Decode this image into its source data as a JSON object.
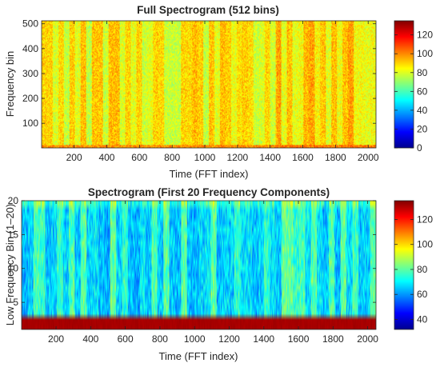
{
  "chart_data": [
    {
      "type": "heatmap",
      "title": "Full Spectrogram (512 bins)",
      "xlabel": "Time (FFT index)",
      "ylabel": "Frequency bin",
      "xlim": [
        1,
        2048
      ],
      "ylim": [
        1,
        512
      ],
      "xticks": [
        "200",
        "400",
        "600",
        "800",
        "1000",
        "1200",
        "1400",
        "1600",
        "1800",
        "2000"
      ],
      "yticks": [
        "500",
        "400",
        "300",
        "200",
        "100"
      ],
      "colormap": "jet",
      "clim": [
        0,
        135
      ],
      "colorbar_ticks": [
        "120",
        "100",
        "80",
        "60",
        "40",
        "20",
        "0"
      ],
      "typical_level": 85,
      "colorbar_position": "right"
    },
    {
      "type": "heatmap",
      "title": "Spectrogram (First 20 Frequency Components)",
      "xlabel": "Time (FFT index)",
      "ylabel": "Low Frequency Bin (1–20)",
      "xlim": [
        1,
        2048
      ],
      "ylim": [
        1,
        20
      ],
      "xticks": [
        "200",
        "400",
        "600",
        "800",
        "1000",
        "1200",
        "1400",
        "1600",
        "1800",
        "2000"
      ],
      "yticks": [
        "20",
        "15",
        "10",
        "5"
      ],
      "colormap": "jet",
      "clim": [
        32,
        135
      ],
      "colorbar_ticks": [
        "120",
        "100",
        "80",
        "60",
        "40"
      ],
      "typical_level": 72,
      "dc_bins_level": 132,
      "colorbar_position": "right"
    }
  ]
}
